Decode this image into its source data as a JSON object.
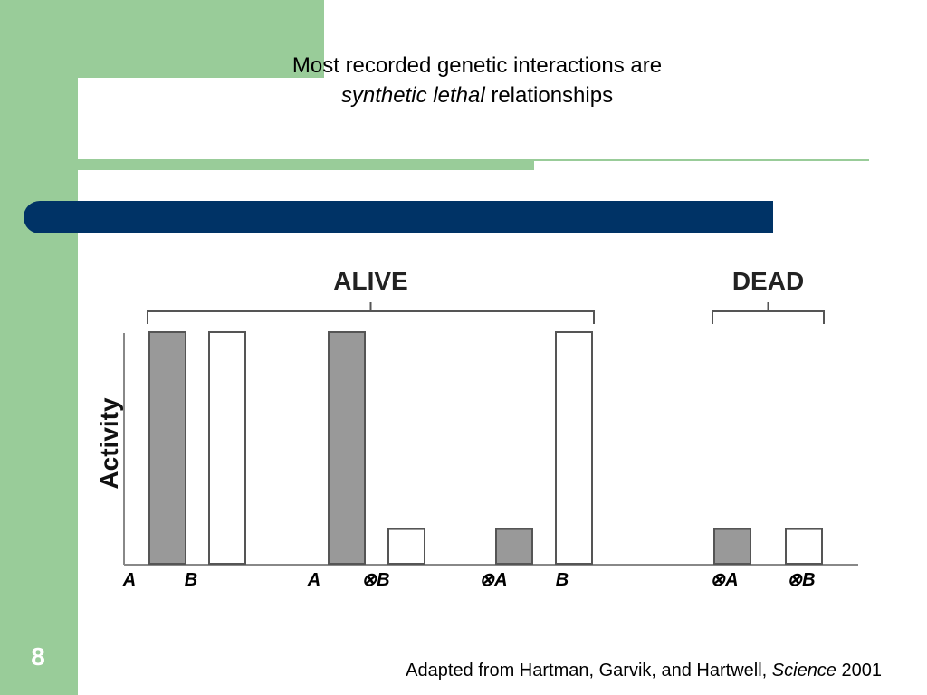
{
  "slide": {
    "title_line1": "Most recorded genetic interactions are",
    "title_italic": "synthetic lethal",
    "title_rest": " relationships",
    "number": "8",
    "citation_main": "Adapted from Hartman, Garvik, and Hartwell, ",
    "citation_italic": "Science",
    "citation_year": " 2001"
  },
  "colors": {
    "green": "#99cc99",
    "navy": "#003366",
    "bar_gray": "#999999",
    "bar_white": "#ffffff",
    "bar_edge": "#555555"
  },
  "chart_data": {
    "type": "bar",
    "ylabel": "Activity",
    "ylim": [
      0,
      1
    ],
    "bars": [
      {
        "label": "A",
        "prefix": "",
        "value": 1.0,
        "fill": "gray"
      },
      {
        "label": "B",
        "prefix": "",
        "value": 1.0,
        "fill": "white"
      },
      {
        "label": "A",
        "prefix": "",
        "value": 1.0,
        "fill": "gray"
      },
      {
        "label": "B",
        "prefix": "⊗",
        "value": 0.15,
        "fill": "white"
      },
      {
        "label": "A",
        "prefix": "⊗",
        "value": 0.15,
        "fill": "gray"
      },
      {
        "label": "B",
        "prefix": "",
        "value": 1.0,
        "fill": "white"
      },
      {
        "label": "A",
        "prefix": "⊗",
        "value": 0.15,
        "fill": "gray"
      },
      {
        "label": "B",
        "prefix": "⊗",
        "value": 0.15,
        "fill": "white"
      }
    ],
    "groups": [
      {
        "label": "ALIVE",
        "bars": [
          0,
          5
        ]
      },
      {
        "label": "DEAD",
        "bars": [
          6,
          7
        ]
      }
    ]
  }
}
